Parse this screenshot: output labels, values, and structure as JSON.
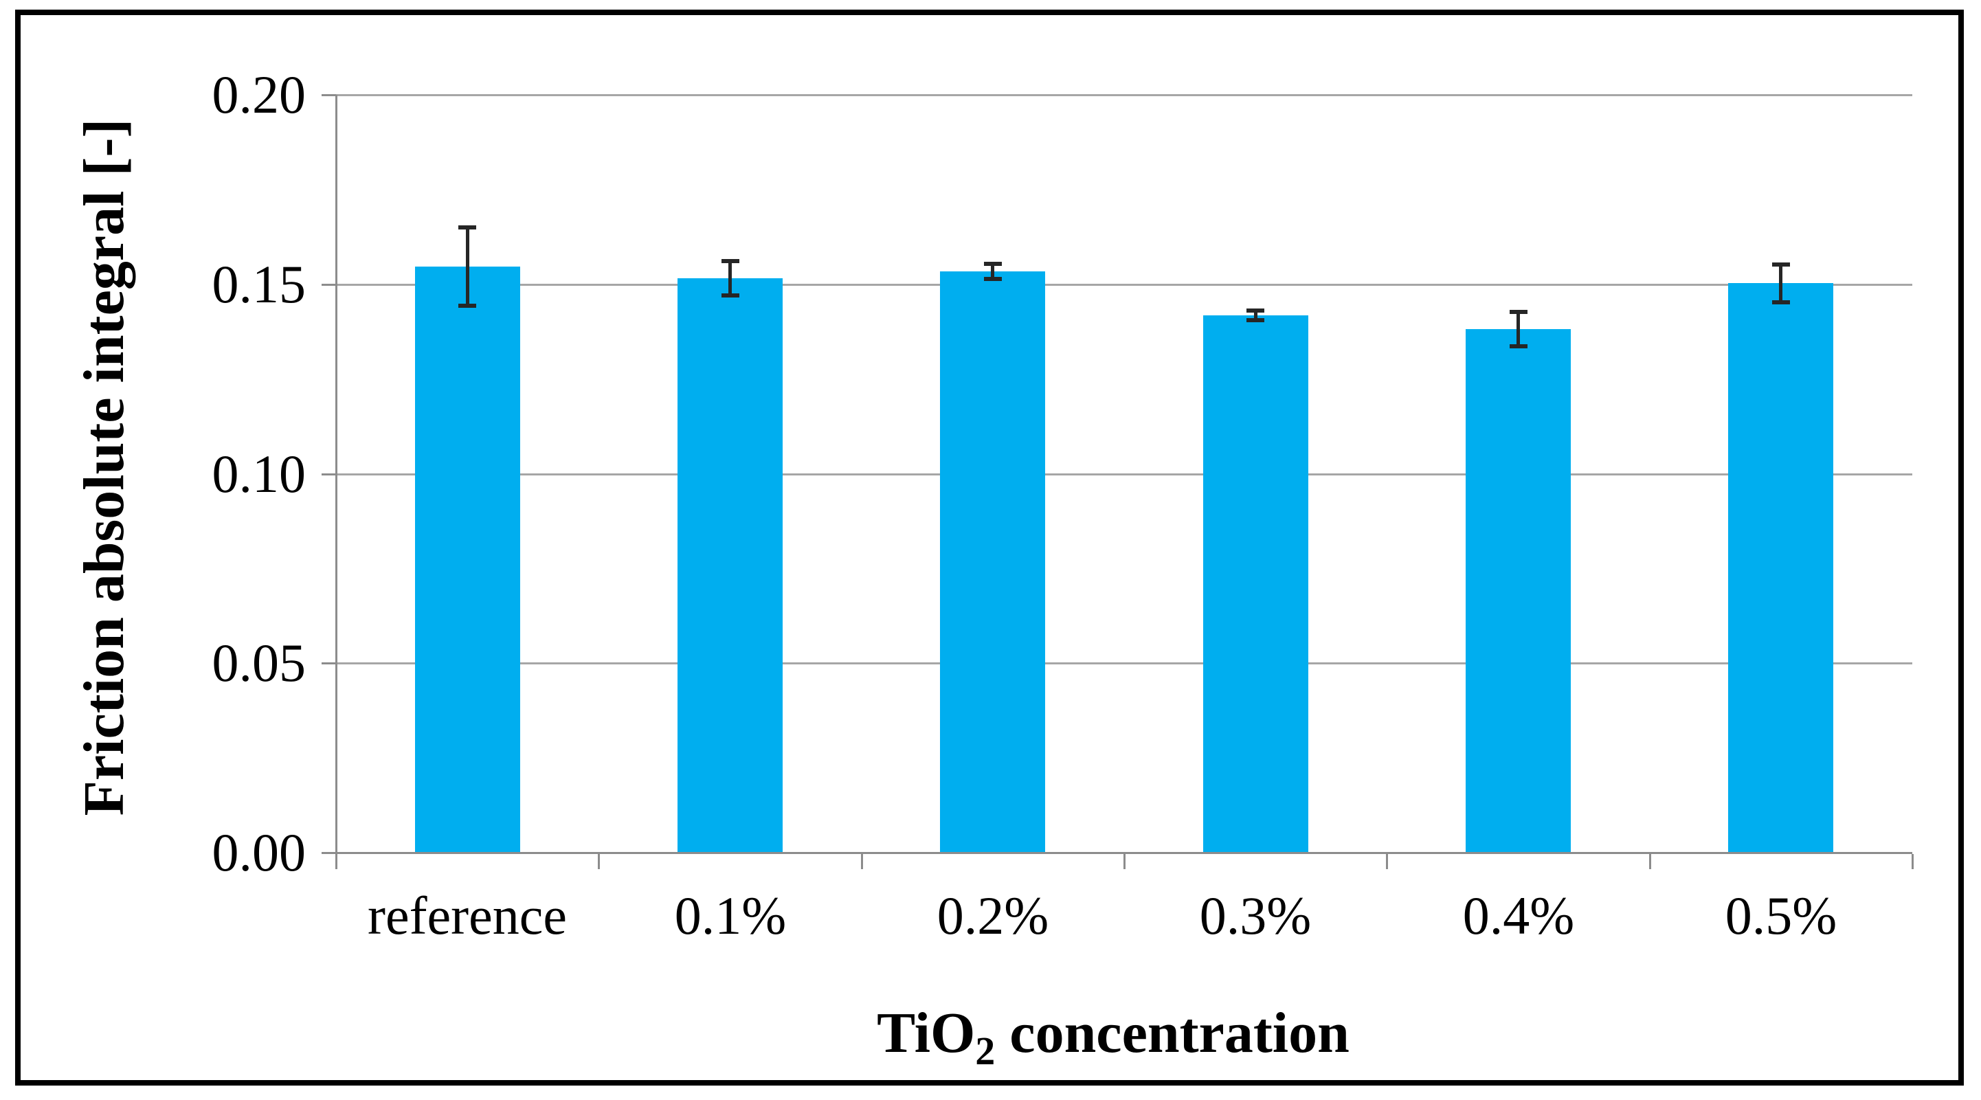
{
  "figure": {
    "background_color": "#FFFFFF",
    "border_color": "#000000"
  },
  "chart_data": {
    "type": "bar",
    "title": "",
    "categories": [
      "reference",
      "0.1%",
      "0.2%",
      "0.3%",
      "0.4%",
      "0.5%"
    ],
    "values": [
      0.1547,
      0.1516,
      0.1534,
      0.1418,
      0.1382,
      0.1503
    ],
    "errors": [
      0.0103,
      0.0045,
      0.002,
      0.0013,
      0.0045,
      0.005
    ],
    "xlabel": "TiO2 concentration",
    "xlabel_rich": {
      "main": "TiO",
      "sub": "2",
      "rest": " concentration"
    },
    "ylabel": "Friction absolute integral [-]",
    "ylim": [
      0,
      0.2
    ],
    "yticks": [
      0,
      0.05,
      0.1,
      0.15,
      0.2
    ],
    "ytick_labels": [
      "0.00",
      "0.05",
      "0.10",
      "0.15",
      "0.20"
    ],
    "grid": "horizontal-only",
    "legend_position": "none",
    "error_bars": "plus-minus-caps",
    "bar_color": "#00AEEF",
    "gridline_color": "#A6A6A6",
    "axis_line_color": "#8C8C8C",
    "error_bar_color": "#262626",
    "text_color": "#000000"
  }
}
